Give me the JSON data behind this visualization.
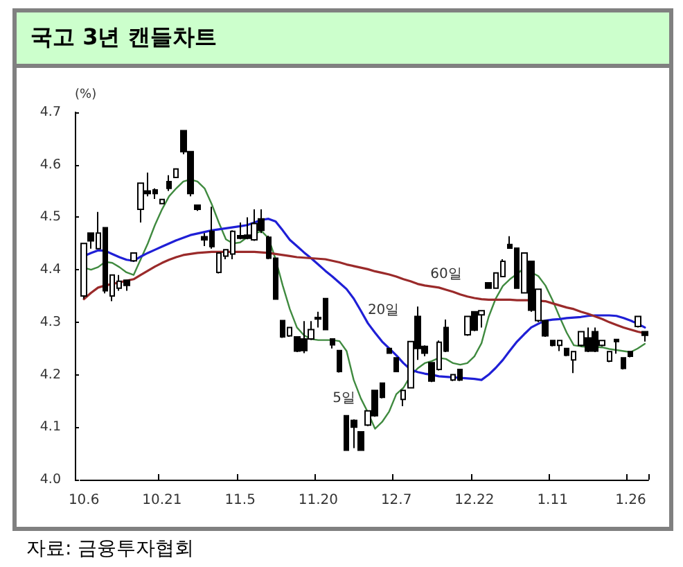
{
  "chart_data": {
    "type": "candlestick",
    "title": "국고 3년 캔들차트",
    "ylabel": "(%)",
    "annotations": [
      "자료: 금융투자협회"
    ],
    "categories": [
      "10.6",
      null,
      null,
      null,
      null,
      null,
      null,
      null,
      null,
      null,
      null,
      "10.21",
      null,
      null,
      null,
      null,
      null,
      null,
      null,
      null,
      null,
      null,
      "11.5",
      null,
      null,
      null,
      null,
      null,
      null,
      null,
      null,
      null,
      null,
      "11.20",
      null,
      null,
      null,
      null,
      null,
      null,
      null,
      null,
      null,
      null,
      "12.7",
      null,
      null,
      null,
      null,
      null,
      null,
      null,
      null,
      null,
      null,
      "12.22",
      null,
      null,
      null,
      null,
      null,
      null,
      null,
      null,
      null,
      null,
      "1.11",
      null,
      null,
      null,
      null,
      null,
      null,
      null,
      null,
      null,
      null,
      "1.26",
      null,
      null
    ],
    "ohlc": [
      [
        4.35,
        4.45,
        4.345,
        4.45
      ],
      [
        4.47,
        4.47,
        4.44,
        4.455
      ],
      [
        4.44,
        4.51,
        4.44,
        4.47
      ],
      [
        4.48,
        4.48,
        4.355,
        4.36
      ],
      [
        4.35,
        4.39,
        4.34,
        4.39
      ],
      [
        4.365,
        4.39,
        4.36,
        4.378
      ],
      [
        4.38,
        4.38,
        4.36,
        4.37
      ],
      [
        4.417,
        4.432,
        4.415,
        4.432
      ],
      [
        4.515,
        4.565,
        4.49,
        4.565
      ],
      [
        4.55,
        4.585,
        4.54,
        4.545
      ],
      [
        4.552,
        4.555,
        4.535,
        4.545
      ],
      [
        4.526,
        4.534,
        4.526,
        4.534
      ],
      [
        4.568,
        4.58,
        4.55,
        4.555
      ],
      [
        4.576,
        4.592,
        4.575,
        4.592
      ],
      [
        4.665,
        4.665,
        4.62,
        4.625
      ],
      [
        4.625,
        4.625,
        4.54,
        4.545
      ],
      [
        4.523,
        4.523,
        4.512,
        4.515
      ],
      [
        4.463,
        4.47,
        4.445,
        4.457
      ],
      [
        4.473,
        4.52,
        4.44,
        4.444
      ],
      [
        4.395,
        4.432,
        4.393,
        4.432
      ],
      [
        4.426,
        4.438,
        4.42,
        4.438
      ],
      [
        4.43,
        4.475,
        4.42,
        4.473
      ],
      [
        4.465,
        4.49,
        4.458,
        4.46
      ],
      [
        4.466,
        4.5,
        4.458,
        4.46
      ],
      [
        4.457,
        4.515,
        4.455,
        4.488
      ],
      [
        4.497,
        4.515,
        4.47,
        4.475
      ],
      [
        4.462,
        4.465,
        4.42,
        4.422
      ],
      [
        4.422,
        4.422,
        4.344,
        4.344
      ],
      [
        4.303,
        4.303,
        4.27,
        4.272
      ],
      [
        4.274,
        4.29,
        4.272,
        4.29
      ],
      [
        4.272,
        4.272,
        4.243,
        4.245
      ],
      [
        4.268,
        4.302,
        4.241,
        4.246
      ],
      [
        4.268,
        4.302,
        4.266,
        4.286
      ],
      [
        4.309,
        4.32,
        4.29,
        4.306
      ],
      [
        4.345,
        4.345,
        4.286,
        4.286
      ],
      [
        4.268,
        4.268,
        4.25,
        4.257
      ],
      [
        4.246,
        4.246,
        4.204,
        4.206
      ],
      [
        4.122,
        4.122,
        4.055,
        4.056
      ],
      [
        4.113,
        4.115,
        4.06,
        4.1
      ],
      [
        4.091,
        4.091,
        4.055,
        4.056
      ],
      [
        4.104,
        4.131,
        4.102,
        4.131
      ],
      [
        4.17,
        4.17,
        4.12,
        4.122
      ],
      [
        4.184,
        4.184,
        4.155,
        4.157
      ],
      [
        4.25,
        4.25,
        4.24,
        4.241
      ],
      [
        4.232,
        4.232,
        4.205,
        4.206
      ],
      [
        4.153,
        4.17,
        4.14,
        4.17
      ],
      [
        4.175,
        4.263,
        4.175,
        4.263
      ],
      [
        4.311,
        4.33,
        4.228,
        4.25
      ],
      [
        4.254,
        4.256,
        4.235,
        4.241
      ],
      [
        4.223,
        4.223,
        4.186,
        4.188
      ],
      [
        4.21,
        4.265,
        4.208,
        4.262
      ],
      [
        4.29,
        4.305,
        4.243,
        4.245
      ],
      [
        4.19,
        4.2,
        4.188,
        4.2
      ],
      [
        4.21,
        4.21,
        4.188,
        4.19
      ],
      [
        4.276,
        4.311,
        4.274,
        4.311
      ],
      [
        4.32,
        4.32,
        4.283,
        4.285
      ],
      [
        4.314,
        4.322,
        4.29,
        4.322
      ],
      [
        4.375,
        4.375,
        4.364,
        4.365
      ],
      [
        4.365,
        4.394,
        4.364,
        4.394
      ],
      [
        4.387,
        4.42,
        4.386,
        4.416
      ],
      [
        4.448,
        4.464,
        4.44,
        4.441
      ],
      [
        4.441,
        4.441,
        4.364,
        4.365
      ],
      [
        4.356,
        4.432,
        4.355,
        4.432
      ],
      [
        4.416,
        4.416,
        4.32,
        4.323
      ],
      [
        4.303,
        4.363,
        4.3,
        4.363
      ],
      [
        4.303,
        4.303,
        4.272,
        4.274
      ],
      [
        4.265,
        4.265,
        4.254,
        4.256
      ],
      [
        4.256,
        4.265,
        4.245,
        4.265
      ],
      [
        4.25,
        4.25,
        4.235,
        4.237
      ],
      [
        4.228,
        4.244,
        4.203,
        4.244
      ],
      [
        4.256,
        4.282,
        4.254,
        4.282
      ],
      [
        4.27,
        4.29,
        4.243,
        4.245
      ],
      [
        4.282,
        4.29,
        4.243,
        4.245
      ],
      [
        4.256,
        4.265,
        4.254,
        4.265
      ],
      [
        4.226,
        4.244,
        4.224,
        4.244
      ],
      [
        4.267,
        4.268,
        4.24,
        4.263
      ],
      [
        4.232,
        4.232,
        4.21,
        4.212
      ],
      [
        4.244,
        4.244,
        4.233,
        4.235
      ],
      [
        4.292,
        4.311,
        4.29,
        4.311
      ],
      [
        4.282,
        4.282,
        4.263,
        4.275
      ]
    ],
    "series": [
      {
        "name": "5일",
        "type": "line",
        "color": "#3f8a3f",
        "values": [
          4.404,
          4.4,
          4.405,
          4.415,
          4.413,
          4.405,
          4.395,
          4.39,
          4.42,
          4.45,
          4.485,
          4.515,
          4.54,
          4.555,
          4.568,
          4.572,
          4.568,
          4.555,
          4.525,
          4.49,
          4.458,
          4.45,
          4.452,
          4.462,
          4.468,
          4.474,
          4.46,
          4.42,
          4.37,
          4.325,
          4.29,
          4.275,
          4.268,
          4.266,
          4.266,
          4.266,
          4.264,
          4.245,
          4.19,
          4.155,
          4.128,
          4.097,
          4.11,
          4.13,
          4.163,
          4.175,
          4.198,
          4.212,
          4.222,
          4.226,
          4.232,
          4.23,
          4.222,
          4.219,
          4.222,
          4.235,
          4.26,
          4.31,
          4.345,
          4.369,
          4.382,
          4.392,
          4.403,
          4.395,
          4.388,
          4.37,
          4.342,
          4.31,
          4.28,
          4.256,
          4.254,
          4.253,
          4.253,
          4.252,
          4.249,
          4.247,
          4.245,
          4.243,
          4.25,
          4.259
        ]
      },
      {
        "name": "20일",
        "type": "line",
        "color": "#1f1fd6",
        "values": [
          4.426,
          4.432,
          4.437,
          4.436,
          4.43,
          4.424,
          4.419,
          4.417,
          4.425,
          4.432,
          4.438,
          4.444,
          4.45,
          4.456,
          4.461,
          4.466,
          4.469,
          4.472,
          4.475,
          4.477,
          4.479,
          4.481,
          4.483,
          4.485,
          4.49,
          4.495,
          4.497,
          4.492,
          4.475,
          4.457,
          4.445,
          4.433,
          4.422,
          4.41,
          4.398,
          4.387,
          4.375,
          4.363,
          4.345,
          4.322,
          4.298,
          4.28,
          4.263,
          4.25,
          4.237,
          4.222,
          4.21,
          4.205,
          4.202,
          4.2,
          4.197,
          4.196,
          4.195,
          4.194,
          4.193,
          4.192,
          4.19,
          4.2,
          4.213,
          4.228,
          4.246,
          4.263,
          4.277,
          4.29,
          4.297,
          4.303,
          4.305,
          4.306,
          4.308,
          4.309,
          4.31,
          4.312,
          4.313,
          4.313,
          4.313,
          4.312,
          4.308,
          4.303,
          4.297,
          4.29
        ]
      },
      {
        "name": "60일",
        "type": "line",
        "color": "#9a2a2a",
        "values": [
          4.344,
          4.356,
          4.366,
          4.37,
          4.373,
          4.376,
          4.379,
          4.382,
          4.39,
          4.398,
          4.406,
          4.413,
          4.419,
          4.424,
          4.428,
          4.43,
          4.432,
          4.433,
          4.434,
          4.434,
          4.434,
          4.434,
          4.434,
          4.434,
          4.434,
          4.433,
          4.432,
          4.43,
          4.428,
          4.426,
          4.424,
          4.423,
          4.422,
          4.421,
          4.42,
          4.417,
          4.414,
          4.41,
          4.407,
          4.404,
          4.401,
          4.397,
          4.394,
          4.391,
          4.387,
          4.382,
          4.378,
          4.373,
          4.37,
          4.368,
          4.366,
          4.362,
          4.358,
          4.353,
          4.349,
          4.346,
          4.344,
          4.343,
          4.343,
          4.343,
          4.343,
          4.342,
          4.342,
          4.342,
          4.341,
          4.34,
          4.336,
          4.332,
          4.328,
          4.325,
          4.32,
          4.316,
          4.311,
          4.306,
          4.3,
          4.295,
          4.29,
          4.286,
          4.282,
          4.279
        ]
      }
    ],
    "ylim": [
      4.0,
      4.7
    ],
    "yticks": [
      {
        "value": 4.0,
        "label": "4.0"
      },
      4.1,
      4.2,
      4.3,
      4.4,
      4.5,
      4.6,
      4.7
    ],
    "marker": "none"
  }
}
